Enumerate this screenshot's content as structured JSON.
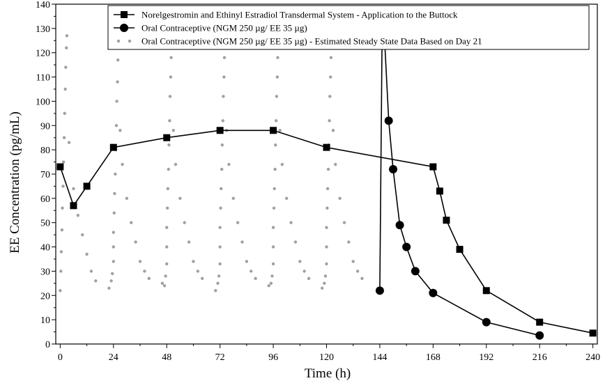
{
  "chart_data": {
    "type": "line",
    "xlabel": "Time (h)",
    "ylabel": "EE Concentration (pg/mL)",
    "xlim": [
      -2,
      242
    ],
    "ylim": [
      0,
      140
    ],
    "xticks": [
      0,
      24,
      48,
      72,
      96,
      120,
      144,
      168,
      192,
      216,
      240
    ],
    "yticks": [
      0,
      10,
      20,
      30,
      40,
      50,
      60,
      70,
      80,
      90,
      100,
      110,
      120,
      130,
      140
    ],
    "grid": false,
    "legend_position": "top-right",
    "series": [
      {
        "name": "Norelgestromin and Ethinyl Estradiol Transdermal System - Application to the Buttock",
        "marker": "square",
        "line": "solid",
        "color": "#000000",
        "x": [
          0,
          6,
          12,
          24,
          48,
          72,
          96,
          120,
          168,
          171,
          174,
          180,
          192,
          216,
          240
        ],
        "y": [
          73,
          57,
          65,
          81,
          85,
          88,
          88,
          81,
          73,
          63,
          51,
          39,
          22,
          9,
          4.5
        ]
      },
      {
        "name": "Oral Contraceptive (NGM 250 µg/ EE 35 µg)",
        "marker": "circle",
        "line": "solid",
        "color": "#000000",
        "x": [
          144,
          145,
          146,
          148,
          150,
          153,
          156,
          160,
          168,
          192,
          216
        ],
        "y": [
          22,
          124,
          128,
          92,
          72,
          49,
          40,
          30,
          21,
          9,
          3.5
        ]
      },
      {
        "name": "Oral Contraceptive (NGM 250 µg/ EE 35 µg) - Estimated Steady State Data Based on Day 21",
        "marker": "dot",
        "line": "none",
        "color": "#a0a0a0",
        "x": [
          0,
          0.3,
          0.5,
          0.8,
          1,
          1.3,
          1.5,
          1.8,
          2,
          2.3,
          2.5,
          2.8,
          3,
          4,
          6,
          8,
          10,
          12,
          14,
          16,
          22,
          23,
          23.5,
          24,
          24,
          24,
          24.3,
          24.5,
          24.8,
          25,
          25.3,
          25.5,
          25.8,
          26,
          26.3,
          26.5,
          27,
          28,
          30,
          32,
          34,
          36,
          38,
          40,
          46,
          47,
          47.5,
          48,
          48,
          48,
          48.3,
          48.5,
          48.8,
          49,
          49.3,
          49.5,
          49.8,
          50,
          50.3,
          50.5,
          51,
          52,
          54,
          56,
          58,
          60,
          62,
          64,
          70,
          71,
          71.5,
          72,
          72,
          72,
          72.3,
          72.5,
          72.8,
          73,
          73.3,
          73.5,
          73.8,
          74,
          74.3,
          74.5,
          75,
          76,
          78,
          80,
          82,
          84,
          86,
          88,
          94,
          95,
          95.5,
          96,
          96,
          96,
          96.3,
          96.5,
          96.8,
          97,
          97.3,
          97.5,
          97.8,
          98,
          98.3,
          98.5,
          99,
          100,
          102,
          104,
          106,
          108,
          110,
          112,
          118,
          119,
          119.5,
          120,
          120,
          120,
          120.3,
          120.5,
          120.8,
          121,
          121.3,
          121.5,
          121.8,
          122,
          122.3,
          122.5,
          123,
          124,
          126,
          128,
          130,
          132,
          134,
          136
        ],
        "y": [
          22,
          30,
          38,
          47,
          56,
          65,
          75,
          85,
          95,
          105,
          114,
          122,
          127,
          83,
          64,
          53,
          45,
          37,
          30,
          26,
          23,
          26,
          29,
          34,
          40,
          46,
          54,
          62,
          70,
          80,
          90,
          100,
          108,
          117,
          124,
          125,
          88,
          74,
          60,
          50,
          42,
          34,
          30,
          27,
          25,
          24,
          28,
          33,
          40,
          48,
          56,
          64,
          72,
          82,
          92,
          102,
          110,
          118,
          124,
          127,
          88,
          74,
          60,
          50,
          42,
          34,
          30,
          27,
          22,
          25,
          28,
          33,
          40,
          48,
          56,
          64,
          72,
          82,
          92,
          102,
          110,
          118,
          124,
          127,
          88,
          74,
          60,
          50,
          42,
          34,
          30,
          27,
          24,
          25,
          28,
          33,
          40,
          48,
          56,
          64,
          72,
          82,
          92,
          102,
          110,
          118,
          124,
          126,
          88,
          74,
          60,
          50,
          42,
          34,
          30,
          27,
          23,
          25,
          28,
          33,
          40,
          48,
          56,
          64,
          72,
          82,
          92,
          102,
          110,
          118,
          124,
          128,
          88,
          74,
          60,
          50,
          42,
          34,
          30,
          27
        ]
      }
    ]
  }
}
